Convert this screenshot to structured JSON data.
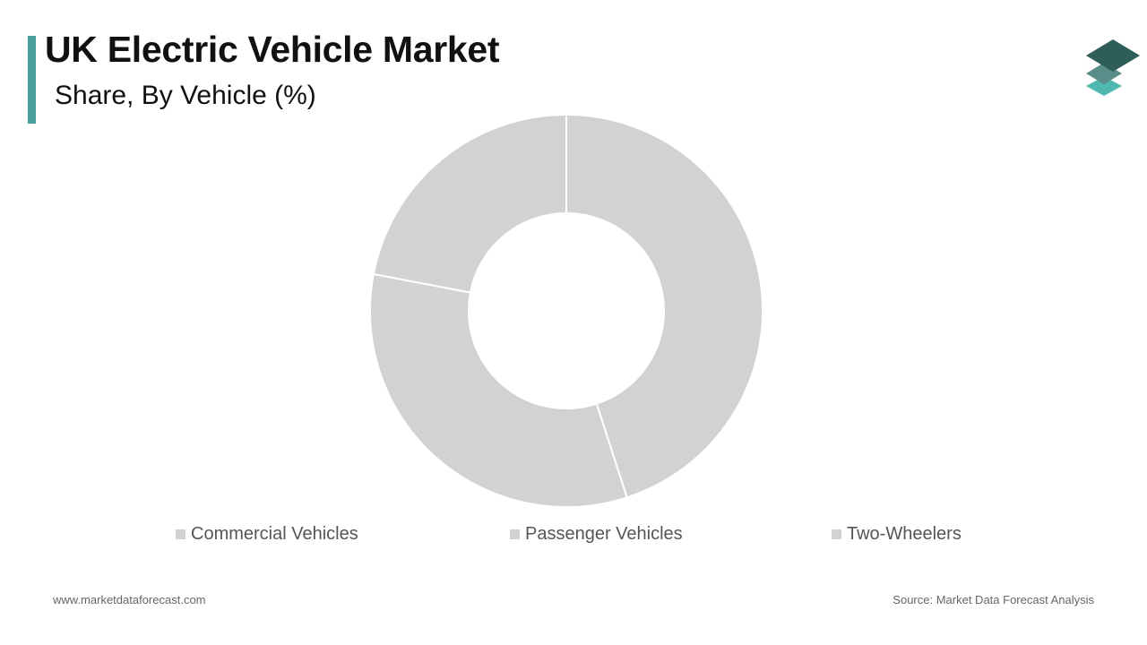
{
  "header": {
    "title": "UK Electric Vehicle Market",
    "subtitle": "Share, By Vehicle (%)"
  },
  "logo": {
    "icon": "stacked-layers-icon",
    "colors": [
      "#2f5e5a",
      "#5a8d89",
      "#4fb8b1"
    ]
  },
  "chart_data": {
    "type": "pie",
    "variant": "donut",
    "title": "UK Electric Vehicle Market",
    "subtitle": "Share, By Vehicle (%)",
    "categories": [
      "Commercial Vehicles",
      "Passenger Vehicles",
      "Two-Wheelers"
    ],
    "values": [
      45,
      33,
      22
    ],
    "colors": [
      "#d3d2d3",
      "#d3d2d3",
      "#d3d2d3"
    ],
    "start_angle_deg": 0,
    "direction": "clockwise",
    "legend_position": "bottom"
  },
  "footer": {
    "website": "www.marketdataforecast.com",
    "source": "Source: Market Data Forecast Analysis"
  }
}
